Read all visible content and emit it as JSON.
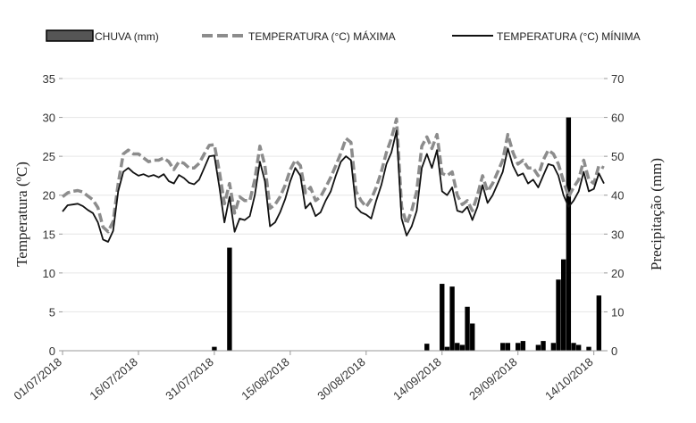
{
  "chart_data": {
    "type": "bar+line",
    "legend": {
      "placement": "top",
      "rain_label": "CHUVA (mm)",
      "tmax_label": "TEMPERATURA (°C) MÁXIMA",
      "tmin_label": "TEMPERATURA (°C) MÍNIMA"
    },
    "y_left": {
      "label": "Temperatura  (ºC)",
      "min": 0,
      "max": 35,
      "ticks": [
        0,
        5,
        10,
        15,
        20,
        25,
        30,
        35
      ]
    },
    "y_right": {
      "label": "Precipitação  (mm)",
      "min": 0,
      "max": 70,
      "ticks": [
        0,
        10,
        20,
        30,
        40,
        50,
        60,
        70
      ]
    },
    "x": {
      "start": "2018-07-01",
      "end": "2018-10-16",
      "tick_labels": [
        "01/07/2018",
        "16/07/2018",
        "31/07/2018",
        "15/08/2018",
        "30/08/2018",
        "14/09/2018",
        "29/09/2018",
        "14/10/2018"
      ],
      "tick_dates": [
        "2018-07-01",
        "2018-07-16",
        "2018-07-31",
        "2018-08-15",
        "2018-08-30",
        "2018-09-14",
        "2018-09-29",
        "2018-10-14"
      ]
    },
    "series": [
      {
        "name": "TEMPERATURA (°C) MÁXIMA",
        "color": "#8c8c8c",
        "style": "dashed",
        "points": [
          [
            "2018-07-01",
            19.8
          ],
          [
            "2018-07-02",
            20.3
          ],
          [
            "2018-07-03",
            20.5
          ],
          [
            "2018-07-04",
            20.6
          ],
          [
            "2018-07-05",
            20.4
          ],
          [
            "2018-07-06",
            19.9
          ],
          [
            "2018-07-07",
            19.4
          ],
          [
            "2018-07-08",
            18.4
          ],
          [
            "2018-07-09",
            15.9
          ],
          [
            "2018-07-10",
            15.3
          ],
          [
            "2018-07-11",
            16.6
          ],
          [
            "2018-07-12",
            21.5
          ],
          [
            "2018-07-13",
            25.3
          ],
          [
            "2018-07-14",
            25.8
          ],
          [
            "2018-07-15",
            25.3
          ],
          [
            "2018-07-16",
            25.3
          ],
          [
            "2018-07-17",
            24.8
          ],
          [
            "2018-07-18",
            24.3
          ],
          [
            "2018-07-19",
            24.5
          ],
          [
            "2018-07-20",
            24.5
          ],
          [
            "2018-07-21",
            24.8
          ],
          [
            "2018-07-22",
            24.3
          ],
          [
            "2018-07-23",
            23.3
          ],
          [
            "2018-07-24",
            24.3
          ],
          [
            "2018-07-25",
            24.1
          ],
          [
            "2018-07-26",
            23.5
          ],
          [
            "2018-07-27",
            23.5
          ],
          [
            "2018-07-28",
            24.1
          ],
          [
            "2018-07-29",
            25.3
          ],
          [
            "2018-07-30",
            26.4
          ],
          [
            "2018-07-31",
            26.5
          ],
          [
            "2018-08-01",
            23.0
          ],
          [
            "2018-08-02",
            18.9
          ],
          [
            "2018-08-03",
            21.5
          ],
          [
            "2018-08-04",
            17.7
          ],
          [
            "2018-08-05",
            19.8
          ],
          [
            "2018-08-06",
            19.3
          ],
          [
            "2018-08-07",
            19.3
          ],
          [
            "2018-08-08",
            22.0
          ],
          [
            "2018-08-09",
            26.3
          ],
          [
            "2018-08-10",
            23.8
          ],
          [
            "2018-08-11",
            18.3
          ],
          [
            "2018-08-12",
            18.8
          ],
          [
            "2018-08-13",
            19.8
          ],
          [
            "2018-08-14",
            21.3
          ],
          [
            "2018-08-15",
            23.3
          ],
          [
            "2018-08-16",
            24.5
          ],
          [
            "2018-08-17",
            23.8
          ],
          [
            "2018-08-18",
            20.3
          ],
          [
            "2018-08-19",
            21.0
          ],
          [
            "2018-08-20",
            19.3
          ],
          [
            "2018-08-21",
            19.8
          ],
          [
            "2018-08-22",
            21.0
          ],
          [
            "2018-08-23",
            22.3
          ],
          [
            "2018-08-24",
            23.8
          ],
          [
            "2018-08-25",
            25.4
          ],
          [
            "2018-08-26",
            27.3
          ],
          [
            "2018-08-27",
            26.8
          ],
          [
            "2018-08-28",
            20.5
          ],
          [
            "2018-08-29",
            19.3
          ],
          [
            "2018-08-30",
            18.5
          ],
          [
            "2018-08-31",
            19.5
          ],
          [
            "2018-09-01",
            21.0
          ],
          [
            "2018-09-02",
            23.0
          ],
          [
            "2018-09-03",
            25.5
          ],
          [
            "2018-09-04",
            27.3
          ],
          [
            "2018-09-05",
            29.8
          ],
          [
            "2018-09-06",
            18.5
          ],
          [
            "2018-09-07",
            16.3
          ],
          [
            "2018-09-08",
            18.0
          ],
          [
            "2018-09-09",
            20.5
          ],
          [
            "2018-09-10",
            26.3
          ],
          [
            "2018-09-11",
            27.5
          ],
          [
            "2018-09-12",
            26.0
          ],
          [
            "2018-09-13",
            27.8
          ],
          [
            "2018-09-14",
            22.8
          ],
          [
            "2018-09-15",
            22.5
          ],
          [
            "2018-09-16",
            23.0
          ],
          [
            "2018-09-17",
            20.0
          ],
          [
            "2018-09-18",
            18.8
          ],
          [
            "2018-09-19",
            19.3
          ],
          [
            "2018-09-20",
            18.0
          ],
          [
            "2018-09-21",
            20.0
          ],
          [
            "2018-09-22",
            22.5
          ],
          [
            "2018-09-23",
            20.5
          ],
          [
            "2018-09-24",
            21.5
          ],
          [
            "2018-09-25",
            23.0
          ],
          [
            "2018-09-26",
            24.5
          ],
          [
            "2018-09-27",
            27.8
          ],
          [
            "2018-09-28",
            25.5
          ],
          [
            "2018-09-29",
            24.0
          ],
          [
            "2018-09-30",
            24.5
          ],
          [
            "2018-10-01",
            23.5
          ],
          [
            "2018-10-02",
            23.5
          ],
          [
            "2018-10-03",
            22.5
          ],
          [
            "2018-10-04",
            24.5
          ],
          [
            "2018-10-05",
            25.8
          ],
          [
            "2018-10-06",
            25.3
          ],
          [
            "2018-10-07",
            24.0
          ],
          [
            "2018-10-08",
            21.8
          ],
          [
            "2018-10-09",
            19.8
          ],
          [
            "2018-10-10",
            21.0
          ],
          [
            "2018-10-11",
            22.0
          ],
          [
            "2018-10-12",
            24.5
          ],
          [
            "2018-10-13",
            22.0
          ],
          [
            "2018-10-14",
            21.5
          ],
          [
            "2018-10-15",
            23.8
          ],
          [
            "2018-10-16",
            23.5
          ]
        ]
      },
      {
        "name": "TEMPERATURA (°C) MÍNIMA",
        "color": "#111111",
        "style": "solid",
        "points": [
          [
            "2018-07-01",
            17.9
          ],
          [
            "2018-07-02",
            18.7
          ],
          [
            "2018-07-03",
            18.8
          ],
          [
            "2018-07-04",
            18.9
          ],
          [
            "2018-07-05",
            18.6
          ],
          [
            "2018-07-06",
            18.1
          ],
          [
            "2018-07-07",
            17.7
          ],
          [
            "2018-07-08",
            16.5
          ],
          [
            "2018-07-09",
            14.3
          ],
          [
            "2018-07-10",
            14.0
          ],
          [
            "2018-07-11",
            15.4
          ],
          [
            "2018-07-12",
            20.5
          ],
          [
            "2018-07-13",
            23.0
          ],
          [
            "2018-07-14",
            23.5
          ],
          [
            "2018-07-15",
            22.9
          ],
          [
            "2018-07-16",
            22.5
          ],
          [
            "2018-07-17",
            22.7
          ],
          [
            "2018-07-18",
            22.4
          ],
          [
            "2018-07-19",
            22.6
          ],
          [
            "2018-07-20",
            22.3
          ],
          [
            "2018-07-21",
            22.7
          ],
          [
            "2018-07-22",
            21.8
          ],
          [
            "2018-07-23",
            21.5
          ],
          [
            "2018-07-24",
            22.6
          ],
          [
            "2018-07-25",
            22.2
          ],
          [
            "2018-07-26",
            21.6
          ],
          [
            "2018-07-27",
            21.4
          ],
          [
            "2018-07-28",
            22.0
          ],
          [
            "2018-07-29",
            23.5
          ],
          [
            "2018-07-30",
            25.0
          ],
          [
            "2018-07-31",
            25.1
          ],
          [
            "2018-08-01",
            21.0
          ],
          [
            "2018-08-02",
            16.5
          ],
          [
            "2018-08-03",
            19.8
          ],
          [
            "2018-08-04",
            15.3
          ],
          [
            "2018-08-05",
            17.0
          ],
          [
            "2018-08-06",
            16.8
          ],
          [
            "2018-08-07",
            17.3
          ],
          [
            "2018-08-08",
            20.0
          ],
          [
            "2018-08-09",
            24.3
          ],
          [
            "2018-08-10",
            21.8
          ],
          [
            "2018-08-11",
            16.0
          ],
          [
            "2018-08-12",
            16.5
          ],
          [
            "2018-08-13",
            17.8
          ],
          [
            "2018-08-14",
            19.5
          ],
          [
            "2018-08-15",
            21.8
          ],
          [
            "2018-08-16",
            23.5
          ],
          [
            "2018-08-17",
            22.5
          ],
          [
            "2018-08-18",
            18.3
          ],
          [
            "2018-08-19",
            19.0
          ],
          [
            "2018-08-20",
            17.3
          ],
          [
            "2018-08-21",
            17.8
          ],
          [
            "2018-08-22",
            19.3
          ],
          [
            "2018-08-23",
            20.5
          ],
          [
            "2018-08-24",
            22.5
          ],
          [
            "2018-08-25",
            24.3
          ],
          [
            "2018-08-26",
            25.0
          ],
          [
            "2018-08-27",
            24.5
          ],
          [
            "2018-08-28",
            18.5
          ],
          [
            "2018-08-29",
            17.8
          ],
          [
            "2018-08-30",
            17.5
          ],
          [
            "2018-08-31",
            17.0
          ],
          [
            "2018-09-01",
            19.3
          ],
          [
            "2018-09-02",
            21.3
          ],
          [
            "2018-09-03",
            24.0
          ],
          [
            "2018-09-04",
            25.5
          ],
          [
            "2018-09-05",
            28.3
          ],
          [
            "2018-09-06",
            17.0
          ],
          [
            "2018-09-07",
            14.8
          ],
          [
            "2018-09-08",
            16.0
          ],
          [
            "2018-09-09",
            18.0
          ],
          [
            "2018-09-10",
            23.5
          ],
          [
            "2018-09-11",
            25.3
          ],
          [
            "2018-09-12",
            23.5
          ],
          [
            "2018-09-13",
            25.8
          ],
          [
            "2018-09-14",
            20.5
          ],
          [
            "2018-09-15",
            20.0
          ],
          [
            "2018-09-16",
            21.0
          ],
          [
            "2018-09-17",
            18.0
          ],
          [
            "2018-09-18",
            17.8
          ],
          [
            "2018-09-19",
            18.5
          ],
          [
            "2018-09-20",
            16.8
          ],
          [
            "2018-09-21",
            18.5
          ],
          [
            "2018-09-22",
            21.3
          ],
          [
            "2018-09-23",
            19.0
          ],
          [
            "2018-09-24",
            20.0
          ],
          [
            "2018-09-25",
            21.5
          ],
          [
            "2018-09-26",
            23.0
          ],
          [
            "2018-09-27",
            26.0
          ],
          [
            "2018-09-28",
            23.8
          ],
          [
            "2018-09-29",
            22.5
          ],
          [
            "2018-09-30",
            22.8
          ],
          [
            "2018-10-01",
            21.5
          ],
          [
            "2018-10-02",
            22.0
          ],
          [
            "2018-10-03",
            21.0
          ],
          [
            "2018-10-04",
            22.5
          ],
          [
            "2018-10-05",
            24.0
          ],
          [
            "2018-10-06",
            23.8
          ],
          [
            "2018-10-07",
            22.5
          ],
          [
            "2018-10-08",
            20.0
          ],
          [
            "2018-10-09",
            18.5
          ],
          [
            "2018-10-10",
            19.3
          ],
          [
            "2018-10-11",
            20.5
          ],
          [
            "2018-10-12",
            23.0
          ],
          [
            "2018-10-13",
            20.5
          ],
          [
            "2018-10-14",
            20.8
          ],
          [
            "2018-10-15",
            22.8
          ],
          [
            "2018-10-16",
            21.5
          ]
        ]
      },
      {
        "name": "CHUVA (mm)",
        "color": "#000000",
        "style": "bar",
        "axis": "right",
        "points": [
          [
            "2018-07-31",
            1.0
          ],
          [
            "2018-08-03",
            26.5
          ],
          [
            "2018-09-11",
            1.8
          ],
          [
            "2018-09-14",
            17.2
          ],
          [
            "2018-09-15",
            1.0
          ],
          [
            "2018-09-16",
            16.5
          ],
          [
            "2018-09-17",
            2.0
          ],
          [
            "2018-09-18",
            1.5
          ],
          [
            "2018-09-19",
            11.3
          ],
          [
            "2018-09-20",
            7.0
          ],
          [
            "2018-09-26",
            2.0
          ],
          [
            "2018-09-27",
            2.0
          ],
          [
            "2018-09-29",
            2.0
          ],
          [
            "2018-09-30",
            2.5
          ],
          [
            "2018-10-03",
            1.5
          ],
          [
            "2018-10-04",
            2.5
          ],
          [
            "2018-10-06",
            2.0
          ],
          [
            "2018-10-07",
            18.3
          ],
          [
            "2018-10-08",
            23.5
          ],
          [
            "2018-10-09",
            60.0
          ],
          [
            "2018-10-10",
            2.0
          ],
          [
            "2018-10-11",
            1.5
          ],
          [
            "2018-10-13",
            1.0
          ],
          [
            "2018-10-15",
            14.2
          ]
        ]
      }
    ]
  }
}
